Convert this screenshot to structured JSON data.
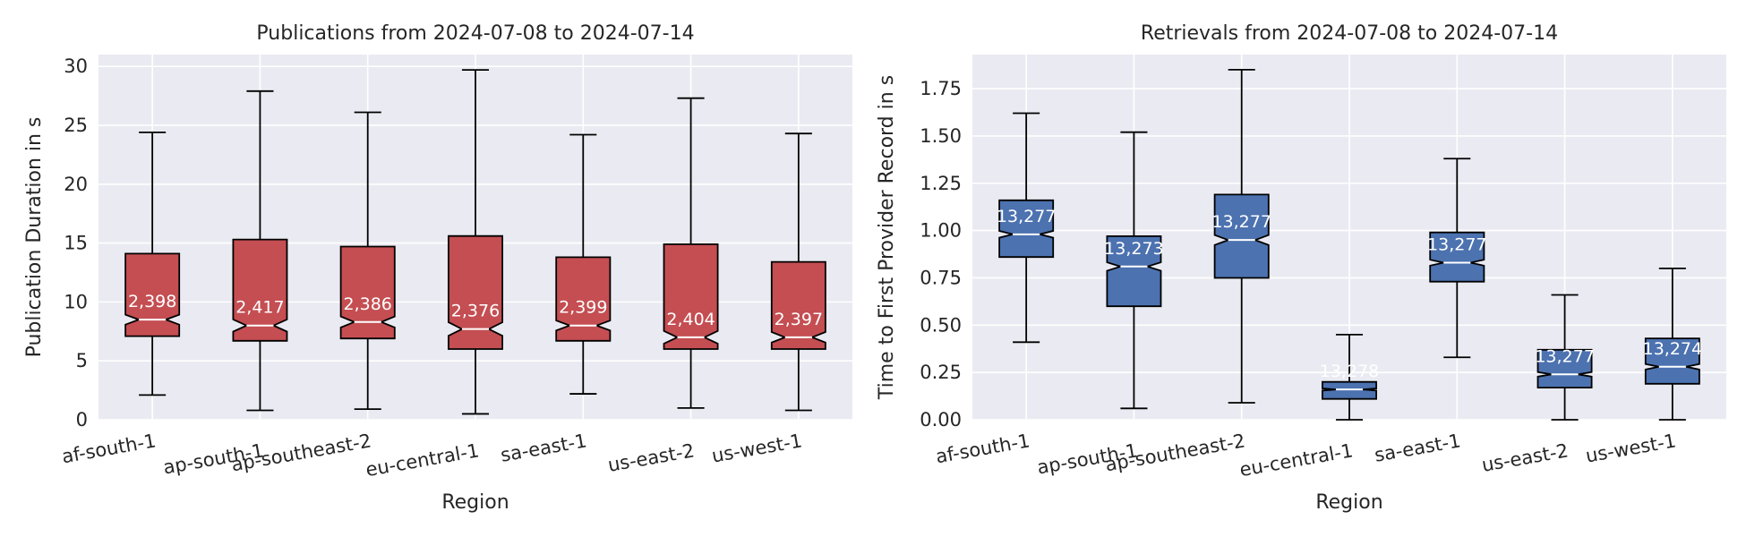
{
  "colors": {
    "panel_bg": "#EAEAF2",
    "grid": "#FFFFFF",
    "text": "#262626",
    "publications_box": "#C44E52",
    "retrievals_box": "#4C72B0",
    "median_line": "#FFFFFF",
    "whisker": "#000000",
    "count_label": "#FFFFFF"
  },
  "chart_data": [
    {
      "type": "box",
      "notched": true,
      "title": "Publications from 2024-07-08 to 2024-07-14",
      "xlabel": "Region",
      "ylabel": "Publication Duration in s",
      "ylim": [
        0,
        31
      ],
      "yticks": [
        0,
        5,
        10,
        15,
        20,
        25,
        30
      ],
      "ytick_labels": [
        "0",
        "5",
        "10",
        "15",
        "20",
        "25",
        "30"
      ],
      "grid": true,
      "categories": [
        "af-south-1",
        "ap-south-1",
        "ap-southeast-2",
        "eu-central-1",
        "sa-east-1",
        "us-east-2",
        "us-west-1"
      ],
      "boxes": [
        {
          "whislo": 2.1,
          "q1": 7.1,
          "med": 8.5,
          "q3": 14.1,
          "whishi": 24.4,
          "count": "2,398"
        },
        {
          "whislo": 0.8,
          "q1": 6.7,
          "med": 8.0,
          "q3": 15.3,
          "whishi": 27.9,
          "count": "2,417"
        },
        {
          "whislo": 0.9,
          "q1": 6.9,
          "med": 8.3,
          "q3": 14.7,
          "whishi": 26.1,
          "count": "2,386"
        },
        {
          "whislo": 0.5,
          "q1": 6.0,
          "med": 7.7,
          "q3": 15.6,
          "whishi": 29.7,
          "count": "2,376"
        },
        {
          "whislo": 2.2,
          "q1": 6.7,
          "med": 8.0,
          "q3": 13.8,
          "whishi": 24.2,
          "count": "2,399"
        },
        {
          "whislo": 1.0,
          "q1": 6.0,
          "med": 7.0,
          "q3": 14.9,
          "whishi": 27.3,
          "count": "2,404"
        },
        {
          "whislo": 0.8,
          "q1": 6.0,
          "med": 7.0,
          "q3": 13.4,
          "whishi": 24.3,
          "count": "2,397"
        }
      ]
    },
    {
      "type": "box",
      "notched": true,
      "title": "Retrievals from 2024-07-08 to 2024-07-14",
      "xlabel": "Region",
      "ylabel": "Time to First Provider Record in s",
      "ylim": [
        0,
        1.93
      ],
      "yticks": [
        0,
        0.25,
        0.5,
        0.75,
        1.0,
        1.25,
        1.5,
        1.75
      ],
      "ytick_labels": [
        "0.00",
        "0.25",
        "0.50",
        "0.75",
        "1.00",
        "1.25",
        "1.50",
        "1.75"
      ],
      "grid": true,
      "categories": [
        "af-south-1",
        "ap-south-1",
        "ap-southeast-2",
        "eu-central-1",
        "sa-east-1",
        "us-east-2",
        "us-west-1"
      ],
      "boxes": [
        {
          "whislo": 0.41,
          "q1": 0.86,
          "med": 0.98,
          "q3": 1.16,
          "whishi": 1.62,
          "count": "13,277"
        },
        {
          "whislo": 0.06,
          "q1": 0.6,
          "med": 0.81,
          "q3": 0.97,
          "whishi": 1.52,
          "count": "13,273"
        },
        {
          "whislo": 0.09,
          "q1": 0.75,
          "med": 0.95,
          "q3": 1.19,
          "whishi": 1.85,
          "count": "13,277"
        },
        {
          "whislo": 0.0,
          "q1": 0.11,
          "med": 0.16,
          "q3": 0.2,
          "whishi": 0.45,
          "count": "13,278"
        },
        {
          "whislo": 0.33,
          "q1": 0.73,
          "med": 0.83,
          "q3": 0.99,
          "whishi": 1.38,
          "count": "13,277"
        },
        {
          "whislo": 0.0,
          "q1": 0.17,
          "med": 0.24,
          "q3": 0.37,
          "whishi": 0.66,
          "count": "13,277"
        },
        {
          "whislo": 0.0,
          "q1": 0.19,
          "med": 0.28,
          "q3": 0.43,
          "whishi": 0.8,
          "count": "13,274"
        }
      ]
    }
  ]
}
